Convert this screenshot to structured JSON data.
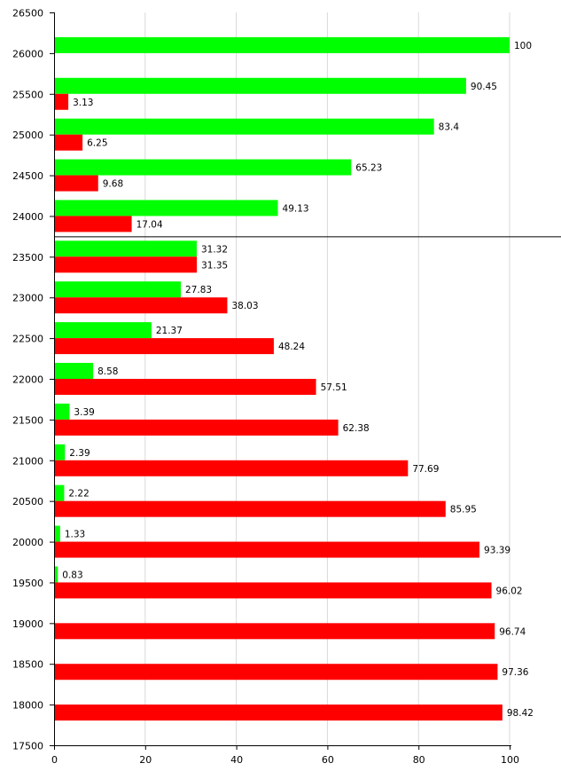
{
  "chart_data": {
    "type": "bar",
    "orientation": "horizontal",
    "categories": [
      26000,
      25500,
      25000,
      24500,
      24000,
      23500,
      23000,
      22500,
      22000,
      21500,
      21000,
      20500,
      20000,
      19500,
      19000,
      18500,
      18000
    ],
    "series": [
      {
        "color": "#00ff00",
        "values": [
          100,
          90.45,
          83.4,
          65.23,
          49.13,
          31.32,
          27.83,
          21.37,
          8.58,
          3.39,
          2.39,
          2.22,
          1.33,
          0.83,
          null,
          null,
          null
        ]
      },
      {
        "color": "#ff0000",
        "values": [
          null,
          3.13,
          6.25,
          9.68,
          17.04,
          31.35,
          38.03,
          48.24,
          57.51,
          62.38,
          77.69,
          85.95,
          93.39,
          96.02,
          96.74,
          97.36,
          98.42
        ]
      }
    ],
    "xlim": [
      0,
      100
    ],
    "xticks": [
      0,
      20,
      40,
      60,
      80,
      100
    ],
    "ylim": [
      17500,
      26500
    ],
    "yticks": [
      26500,
      26000,
      25500,
      25000,
      24500,
      24000,
      23500,
      23000,
      22500,
      22000,
      21500,
      21000,
      20500,
      20000,
      19500,
      19000,
      18500,
      18000,
      17500
    ],
    "reference_line_y": 23750,
    "grid": "vertical",
    "legend": "none",
    "title": "",
    "xlabel": "",
    "ylabel": "",
    "colors": {
      "axis": "#000000",
      "grid": "#d9d9d9"
    }
  }
}
